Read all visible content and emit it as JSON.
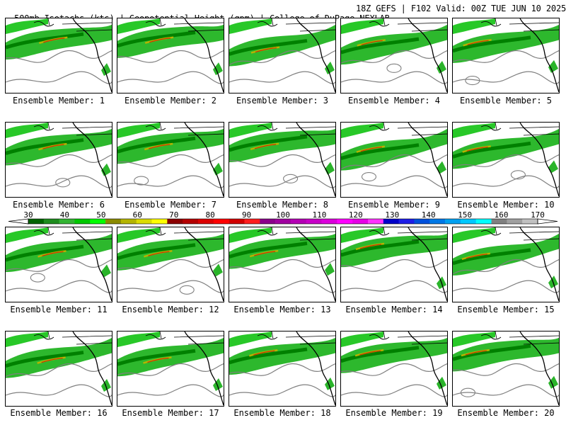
{
  "header": {
    "left": "500mb Isotachs (kts) | Geopotential Height (gpm) | College of DuPage NEXLAB",
    "right": "18Z GEFS | F102 Valid: 00Z TUE JUN 10 2025"
  },
  "colorbar": {
    "ticks": [
      "30",
      "40",
      "50",
      "60",
      "70",
      "80",
      "90",
      "100",
      "110",
      "120",
      "130",
      "140",
      "150",
      "160",
      "170"
    ],
    "colors": [
      "#006400",
      "#1e8c1e",
      "#32b432",
      "#00c800",
      "#00ff00",
      "#8b8b00",
      "#b4b400",
      "#dcdc00",
      "#ffff00",
      "#8b0000",
      "#b40000",
      "#dc0000",
      "#ff0000",
      "#d20000",
      "#ff1e1e",
      "#8b008b",
      "#a000a0",
      "#b400b4",
      "#c800c8",
      "#dc00dc",
      "#ff00ff",
      "#e600e6",
      "#ff32ff",
      "#0000c8",
      "#1e1ee6",
      "#0050dc",
      "#0078e6",
      "#00a0f0",
      "#00c8ff",
      "#00ffff",
      "#808080",
      "#a0a0a0",
      "#c0c0c0"
    ]
  },
  "panels": [
    {
      "label": "Ensemble Member: 1"
    },
    {
      "label": "Ensemble Member: 2"
    },
    {
      "label": "Ensemble Member: 3"
    },
    {
      "label": "Ensemble Member: 4"
    },
    {
      "label": "Ensemble Member: 5"
    },
    {
      "label": "Ensemble Member: 6"
    },
    {
      "label": "Ensemble Member: 7"
    },
    {
      "label": "Ensemble Member: 8"
    },
    {
      "label": "Ensemble Member: 9"
    },
    {
      "label": "Ensemble Member: 10"
    },
    {
      "label": "Ensemble Member: 11"
    },
    {
      "label": "Ensemble Member: 12"
    },
    {
      "label": "Ensemble Member: 13"
    },
    {
      "label": "Ensemble Member: 14"
    },
    {
      "label": "Ensemble Member: 15"
    },
    {
      "label": "Ensemble Member: 16"
    },
    {
      "label": "Ensemble Member: 17"
    },
    {
      "label": "Ensemble Member: 18"
    },
    {
      "label": "Ensemble Member: 19"
    },
    {
      "label": "Ensemble Member: 20"
    }
  ]
}
